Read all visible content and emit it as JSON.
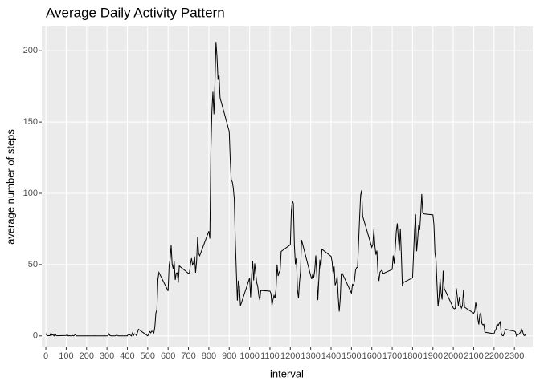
{
  "chart_data": {
    "type": "line",
    "title": "Average Daily Activity Pattern",
    "x_label": "interval",
    "y_label": "average number of steps",
    "x": [
      0,
      5,
      10,
      15,
      20,
      25,
      30,
      35,
      40,
      45,
      50,
      55,
      100,
      105,
      110,
      115,
      120,
      125,
      130,
      135,
      140,
      145,
      150,
      155,
      200,
      205,
      210,
      215,
      220,
      225,
      230,
      235,
      240,
      245,
      250,
      255,
      300,
      305,
      310,
      315,
      320,
      325,
      330,
      335,
      340,
      345,
      350,
      355,
      400,
      405,
      410,
      415,
      420,
      425,
      430,
      435,
      440,
      445,
      450,
      455,
      500,
      505,
      510,
      515,
      520,
      525,
      530,
      535,
      540,
      545,
      550,
      555,
      600,
      605,
      610,
      615,
      620,
      625,
      630,
      635,
      640,
      645,
      650,
      655,
      700,
      705,
      710,
      715,
      720,
      725,
      730,
      735,
      740,
      745,
      750,
      755,
      800,
      805,
      810,
      815,
      820,
      825,
      830,
      835,
      840,
      845,
      850,
      855,
      900,
      905,
      910,
      915,
      920,
      925,
      930,
      935,
      940,
      945,
      950,
      955,
      1000,
      1005,
      1010,
      1015,
      1020,
      1025,
      1030,
      1035,
      1040,
      1045,
      1050,
      1055,
      1100,
      1105,
      1110,
      1115,
      1120,
      1125,
      1130,
      1135,
      1140,
      1145,
      1150,
      1155,
      1200,
      1205,
      1210,
      1215,
      1220,
      1225,
      1230,
      1235,
      1240,
      1245,
      1250,
      1255,
      1300,
      1305,
      1310,
      1315,
      1320,
      1325,
      1330,
      1335,
      1340,
      1345,
      1350,
      1355,
      1400,
      1405,
      1410,
      1415,
      1420,
      1425,
      1430,
      1435,
      1440,
      1445,
      1450,
      1455,
      1500,
      1505,
      1510,
      1515,
      1520,
      1525,
      1530,
      1535,
      1540,
      1545,
      1550,
      1555,
      1600,
      1605,
      1610,
      1615,
      1620,
      1625,
      1630,
      1635,
      1640,
      1645,
      1650,
      1655,
      1700,
      1705,
      1710,
      1715,
      1720,
      1725,
      1730,
      1735,
      1740,
      1745,
      1750,
      1755,
      1800,
      1805,
      1810,
      1815,
      1820,
      1825,
      1830,
      1835,
      1840,
      1845,
      1850,
      1855,
      1900,
      1905,
      1910,
      1915,
      1920,
      1925,
      1930,
      1935,
      1940,
      1945,
      1950,
      1955,
      2000,
      2005,
      2010,
      2015,
      2020,
      2025,
      2030,
      2035,
      2040,
      2045,
      2050,
      2055,
      2100,
      2105,
      2110,
      2115,
      2120,
      2125,
      2130,
      2135,
      2140,
      2145,
      2150,
      2155,
      2200,
      2205,
      2210,
      2215,
      2220,
      2225,
      2230,
      2235,
      2240,
      2245,
      2250,
      2255,
      2300,
      2305,
      2310,
      2315,
      2320,
      2325,
      2330,
      2335,
      2340,
      2345,
      2350,
      2355
    ],
    "values": [
      1.7,
      0.3,
      0.1,
      0.2,
      0.1,
      2.1,
      0.5,
      0.9,
      0,
      1.5,
      0.3,
      0.1,
      0.3,
      0.7,
      0,
      0.2,
      0,
      0,
      0.4,
      0,
      0.3,
      1.1,
      0,
      0,
      0,
      0.1,
      0,
      0,
      0,
      0,
      0,
      0,
      0.1,
      0,
      0,
      0,
      0,
      0,
      1.5,
      0.2,
      0,
      0,
      0,
      0,
      0,
      0.4,
      0.4,
      0,
      0,
      1.2,
      0.9,
      0.5,
      0,
      2.1,
      0.3,
      1.5,
      1.2,
      0.3,
      2.6,
      4.6,
      0,
      1.6,
      3.0,
      2.2,
      3.3,
      3.0,
      2.1,
      6.1,
      16.0,
      18.3,
      39.5,
      44.5,
      31.5,
      49.3,
      53.8,
      63.5,
      50.0,
      47.1,
      52.2,
      39.3,
      44.0,
      44.2,
      37.4,
      49.0,
      43.8,
      44.4,
      50.5,
      54.5,
      49.9,
      51.0,
      55.7,
      44.3,
      52.3,
      69.5,
      57.8,
      56.2,
      73.4,
      68.2,
      129.4,
      157.5,
      171.2,
      155.4,
      177.3,
      206.2,
      195.9,
      179.6,
      183.4,
      167.0,
      143.5,
      124.0,
      109.1,
      108.1,
      103.7,
      96.0,
      66.2,
      45.2,
      24.8,
      38.8,
      35.0,
      21.1,
      40.6,
      27.0,
      42.4,
      52.7,
      38.9,
      50.8,
      44.3,
      37.4,
      34.7,
      28.3,
      25.1,
      31.9,
      31.4,
      29.7,
      21.3,
      25.5,
      28.4,
      26.5,
      33.4,
      50.0,
      42.0,
      44.6,
      46.0,
      59.2,
      63.9,
      87.7,
      94.8,
      92.8,
      63.4,
      50.2,
      54.5,
      32.4,
      26.5,
      37.7,
      45.1,
      67.3,
      42.3,
      39.9,
      43.3,
      41.0,
      46.2,
      56.4,
      42.8,
      25.1,
      40.0,
      53.5,
      47.3,
      60.8,
      55.8,
      52.0,
      43.6,
      48.7,
      35.5,
      37.5,
      41.8,
      27.5,
      17.1,
      26.1,
      43.6,
      43.8,
      30.0,
      36.1,
      35.5,
      38.8,
      46.0,
      47.8,
      48.1,
      65.3,
      82.9,
      98.7,
      102.1,
      84.0,
      62.1,
      64.1,
      74.5,
      63.2,
      56.9,
      59.8,
      43.9,
      38.6,
      44.7,
      45.5,
      46.2,
      43.7,
      46.6,
      56.3,
      50.7,
      61.2,
      73.0,
      78.9,
      68.9,
      59.7,
      75.1,
      56.5,
      34.8,
      37.5,
      40.7,
      58.0,
      74.7,
      85.3,
      59.3,
      67.8,
      77.7,
      74.2,
      85.3,
      99.5,
      86.6,
      85.6,
      84.9,
      77.8,
      58.0,
      53.4,
      36.3,
      20.7,
      27.4,
      40.0,
      30.2,
      25.5,
      45.7,
      33.5,
      19.6,
      19.0,
      19.3,
      33.3,
      26.8,
      21.2,
      27.3,
      21.3,
      19.5,
      21.3,
      32.3,
      20.2,
      15.9,
      17.2,
      23.5,
      19.2,
      12.5,
      8.0,
      14.7,
      16.3,
      8.7,
      7.8,
      8.1,
      2.6,
      1.5,
      3.7,
      4.8,
      8.5,
      7.1,
      8.7,
      9.8,
      2.2,
      0.3,
      0.1,
      1.6,
      4.6,
      3.3,
      2.8,
      0,
      0.8,
      1.0,
      1.6,
      2.6,
      4.7,
      3.3,
      0.6,
      0.2,
      1.1
    ],
    "color": "#000000",
    "xlim": [
      -20,
      2390
    ],
    "ylim": [
      -8,
      217
    ],
    "xticks": [
      0,
      100,
      200,
      300,
      400,
      500,
      600,
      700,
      800,
      900,
      1000,
      1100,
      1200,
      1300,
      1400,
      1500,
      1600,
      1700,
      1800,
      1900,
      2000,
      2100,
      2200,
      2300
    ],
    "yticks": [
      0,
      50,
      100,
      150,
      200
    ],
    "grid": true
  }
}
